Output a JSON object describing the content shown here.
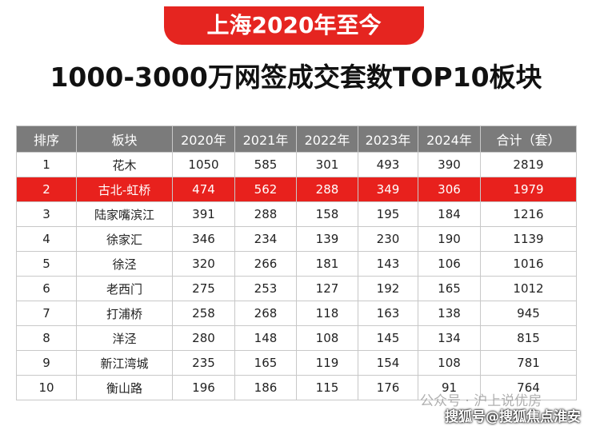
{
  "header": {
    "banner": "上海2020年至今",
    "title": "1000-3000万网签成交套数TOP10板块"
  },
  "table": {
    "columns": [
      "排序",
      "板块",
      "2020年",
      "2021年",
      "2022年",
      "2023年",
      "2024年",
      "合计（套）"
    ],
    "rows": [
      [
        1,
        "花木",
        1050,
        585,
        301,
        493,
        390,
        2819
      ],
      [
        2,
        "古北-虹桥",
        474,
        562,
        288,
        349,
        306,
        1979
      ],
      [
        3,
        "陆家嘴滨江",
        391,
        288,
        158,
        195,
        184,
        1216
      ],
      [
        4,
        "徐家汇",
        346,
        234,
        139,
        230,
        190,
        1139
      ],
      [
        5,
        "徐泾",
        320,
        266,
        181,
        143,
        106,
        1016
      ],
      [
        6,
        "老西门",
        275,
        253,
        127,
        192,
        165,
        1012
      ],
      [
        7,
        "打浦桥",
        258,
        268,
        118,
        163,
        138,
        945
      ],
      [
        8,
        "洋泾",
        280,
        148,
        108,
        145,
        134,
        815
      ],
      [
        9,
        "新江湾城",
        235,
        165,
        119,
        154,
        108,
        781
      ],
      [
        10,
        "衡山路",
        196,
        186,
        115,
        176,
        91,
        764
      ]
    ]
  },
  "watermarks": [
    "公众号 · 沪上说优房",
    "搜狐号@搜狐焦点淮安站"
  ]
}
